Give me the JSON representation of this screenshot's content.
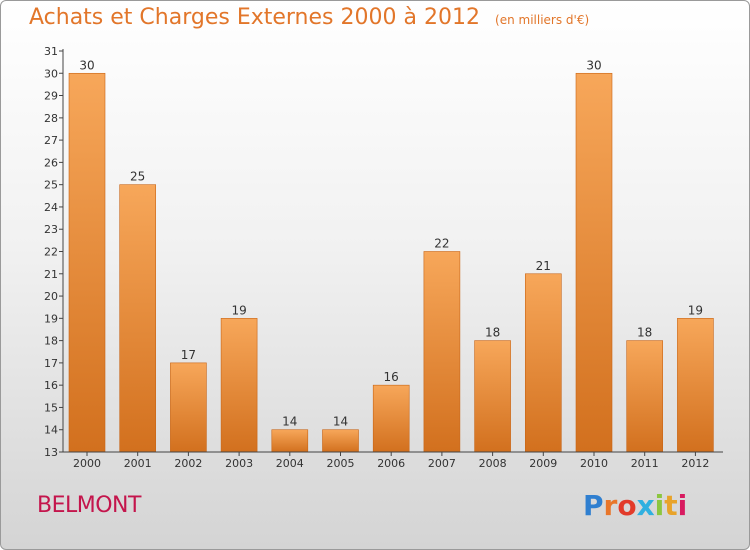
{
  "header": {
    "title": "Achats et Charges Externes 2000 à 2012",
    "unit": "(en milliers d'€)"
  },
  "footer": {
    "commune": "BELMONT",
    "logo_letters": [
      "P",
      "r",
      "o",
      "x",
      "i",
      "t",
      "i"
    ],
    "logo_colors": [
      "#2f7fd0",
      "#e8762a",
      "#e23b2a",
      "#2fb0e0",
      "#8cc63f",
      "#e8a32a",
      "#d81b60"
    ]
  },
  "colors": {
    "bar_light": "#f7a75a",
    "bar_dark": "#d2701e",
    "bar_edge": "#c86516",
    "axis": "#444444",
    "text": "#333333"
  },
  "chart_data": {
    "type": "bar",
    "title": "Achats et Charges Externes 2000 à 2012",
    "subtitle": "(en milliers d'€)",
    "categories": [
      "2000",
      "2001",
      "2002",
      "2003",
      "2004",
      "2005",
      "2006",
      "2007",
      "2008",
      "2009",
      "2010",
      "2011",
      "2012"
    ],
    "values": [
      30,
      25,
      17,
      19,
      14,
      14,
      16,
      22,
      18,
      21,
      30,
      18,
      19
    ],
    "ylim": [
      13,
      31
    ],
    "yticks": [
      13,
      14,
      15,
      16,
      17,
      18,
      19,
      20,
      21,
      22,
      23,
      24,
      25,
      26,
      27,
      28,
      29,
      30,
      31
    ],
    "grid": false,
    "data_labels": true
  }
}
